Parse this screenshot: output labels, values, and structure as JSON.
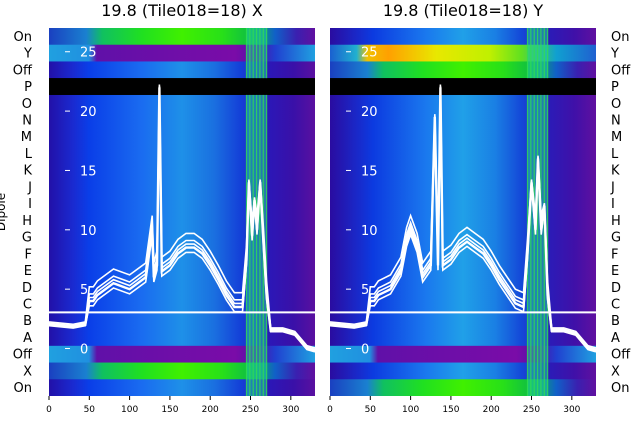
{
  "chart_data": [
    {
      "type": "heatmap",
      "title": "19.8 (Tile018=18) X",
      "ylabel": "Dipole",
      "row_labels": [
        "On",
        "Y",
        "Off",
        "P",
        "O",
        "N",
        "M",
        "L",
        "K",
        "J",
        "I",
        "H",
        "G",
        "F",
        "E",
        "D",
        "C",
        "B",
        "A",
        "Off",
        "X",
        "On"
      ],
      "xlim": [
        0,
        330
      ],
      "x_ticks": [
        0,
        50,
        100,
        150,
        200,
        250,
        300
      ],
      "overlay_ylim": [
        -4,
        27
      ],
      "overlay_ticks": [
        0,
        5,
        10,
        15,
        20,
        25
      ],
      "highlight_band": {
        "x_start": 245,
        "x_end": 270
      },
      "spectrum": {
        "x": [
          0,
          30,
          45,
          50,
          55,
          60,
          80,
          100,
          120,
          128,
          130,
          134,
          137,
          140,
          150,
          160,
          170,
          180,
          190,
          200,
          210,
          220,
          230,
          240,
          245,
          248,
          252,
          255,
          258,
          262,
          266,
          270,
          275,
          290,
          305,
          320,
          330
        ],
        "y": [
          2,
          1.8,
          2,
          4,
          4,
          4.5,
          5.5,
          5,
          6,
          10,
          6,
          7,
          22,
          6.5,
          7,
          8,
          8.5,
          8.5,
          8,
          7,
          5.8,
          4.5,
          3.5,
          3.5,
          7.5,
          14,
          9.5,
          12.5,
          10,
          14,
          9,
          4.5,
          1.5,
          1.5,
          1.2,
          0,
          -0.2
        ]
      }
    },
    {
      "type": "heatmap",
      "title": "19.8 (Tile018=18) Y",
      "ylabel": "",
      "row_labels": [
        "On",
        "Y",
        "Off",
        "P",
        "O",
        "N",
        "M",
        "L",
        "K",
        "J",
        "I",
        "H",
        "G",
        "F",
        "E",
        "D",
        "C",
        "B",
        "A",
        "Off",
        "X",
        "On"
      ],
      "xlim": [
        0,
        330
      ],
      "x_ticks": [
        0,
        50,
        100,
        150,
        200,
        250,
        300
      ],
      "overlay_ylim": [
        -4,
        27
      ],
      "overlay_ticks": [
        0,
        5,
        10,
        15,
        20,
        25
      ],
      "highlight_band": {
        "x_start": 245,
        "x_end": 270
      },
      "spectrum": {
        "x": [
          0,
          30,
          45,
          50,
          55,
          60,
          75,
          88,
          95,
          100,
          108,
          115,
          125,
          130,
          134,
          137,
          140,
          150,
          160,
          170,
          180,
          190,
          200,
          210,
          220,
          230,
          240,
          245,
          250,
          255,
          258,
          262,
          266,
          270,
          275,
          290,
          305,
          320,
          330
        ],
        "y": [
          2,
          1.8,
          2,
          4,
          4,
          4.5,
          5,
          6.5,
          9,
          10,
          8.5,
          6,
          7,
          19.5,
          7,
          22,
          7,
          7.5,
          8.5,
          9,
          8.5,
          8,
          7,
          5.8,
          4.8,
          3.8,
          3.5,
          8,
          14,
          10,
          16,
          10,
          12,
          4.5,
          1.5,
          1.5,
          1.2,
          0,
          -0.2
        ]
      }
    }
  ]
}
